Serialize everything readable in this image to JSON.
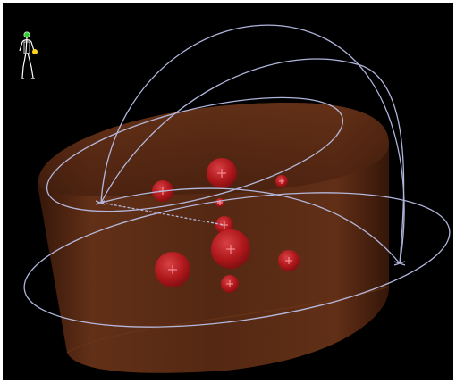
{
  "viewer": {
    "background_color": "#000000",
    "frame_color": "#ffffff",
    "phantom": {
      "shape": "elliptical-cylinder",
      "color": "#5a2a14"
    },
    "beam_arcs": {
      "color": "#b9bfe6",
      "count": 4
    },
    "targets": {
      "color": "#c8191e",
      "marker": "crosshair",
      "count": 10
    },
    "orientation_widget": {
      "head_marker_color": "#33cc33",
      "hand_marker_color": "#ffd21e",
      "figure_color": "#ffffff"
    }
  }
}
